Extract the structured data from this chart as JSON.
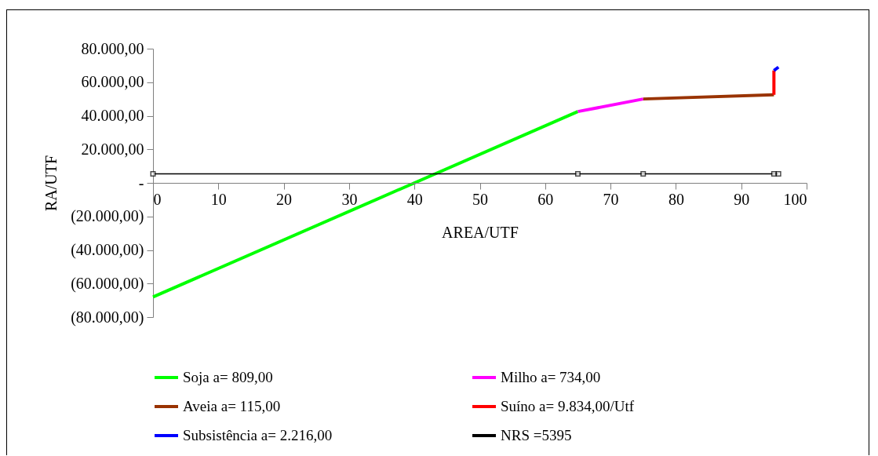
{
  "chart_data": {
    "type": "line",
    "xlabel": "AREA/UTF",
    "ylabel": "RA/UTF",
    "xlim": [
      0,
      100
    ],
    "xticks": [
      0,
      10,
      20,
      30,
      40,
      50,
      60,
      70,
      80,
      90,
      100
    ],
    "ylim": [
      -80000,
      80000
    ],
    "yticks": [
      {
        "value": -80000,
        "label": "(80.000,00)"
      },
      {
        "value": -60000,
        "label": "(60.000,00)"
      },
      {
        "value": -40000,
        "label": "(40.000,00)"
      },
      {
        "value": -20000,
        "label": "(20.000,00)"
      },
      {
        "value": 0,
        "label": "-"
      },
      {
        "value": 20000,
        "label": "20.000,00"
      },
      {
        "value": 40000,
        "label": "40.000,00"
      },
      {
        "value": 60000,
        "label": "60.000,00"
      },
      {
        "value": 80000,
        "label": "80.000,00"
      }
    ],
    "grid": false,
    "legend": "bottom",
    "marker": "none",
    "series": [
      {
        "name": "Soja a= 809,00",
        "color": "#00ff00",
        "x": [
          0,
          65
        ],
        "values": [
          -68000,
          42500
        ]
      },
      {
        "name": "Milho a= 734,00",
        "color": "#ff00ff",
        "x": [
          65,
          75
        ],
        "values": [
          42500,
          50000
        ]
      },
      {
        "name": "Aveia a= 115,00",
        "color": "#993300",
        "x": [
          75,
          95
        ],
        "values": [
          50000,
          52500
        ]
      },
      {
        "name": "Suíno a= 9.834,00/Utf",
        "color": "#ff0000",
        "x": [
          95,
          95
        ],
        "values": [
          52500,
          67000
        ]
      },
      {
        "name": "Subsistência a= 2.216,00",
        "color": "#0000ff",
        "x": [
          95,
          95.7
        ],
        "values": [
          67000,
          69000
        ]
      },
      {
        "name": "NRS =5395",
        "color": "#000000",
        "marker": "square",
        "x": [
          0,
          65,
          75,
          95,
          95.7
        ],
        "values": [
          5395,
          5395,
          5395,
          5395,
          5395
        ]
      }
    ]
  }
}
